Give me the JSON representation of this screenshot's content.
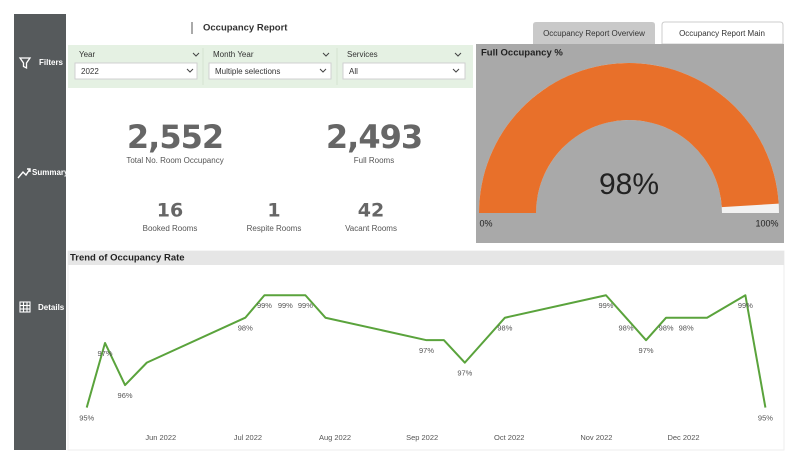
{
  "header": {
    "title": "Occupancy Report",
    "tabs": [
      "Occupancy Report Overview",
      "Occupancy Report Main"
    ]
  },
  "sidebar": [
    "Filters",
    "Summary",
    "Details"
  ],
  "filters": [
    {
      "label": "Year",
      "value": "2022"
    },
    {
      "label": "Month Year",
      "value": "Multiple selections"
    },
    {
      "label": "Services",
      "value": "All"
    }
  ],
  "kpis": [
    {
      "value": "2,552",
      "label": "Total No. Room Occupancy"
    },
    {
      "value": "2,493",
      "label": "Full Rooms"
    },
    {
      "value": "16",
      "label": "Booked Rooms"
    },
    {
      "value": "1",
      "label": "Respite Rooms"
    },
    {
      "value": "42",
      "label": "Vacant Rooms"
    }
  ],
  "chart_data": [
    {
      "type": "gauge",
      "title": "Full Occupancy %",
      "value": 98,
      "value_label": "98%",
      "lim": [
        0,
        100
      ],
      "ticks": [
        {
          "value": 0,
          "label": "0%"
        },
        {
          "value": 100,
          "label": "100%"
        }
      ],
      "color": "#e8702a",
      "track_color": "#f2f2f2"
    },
    {
      "type": "line",
      "title": "Trend of Occupancy Rate",
      "x": [
        5.15,
        5.36,
        5.59,
        5.84,
        6.97,
        7.19,
        7.43,
        7.66,
        7.89,
        9.05,
        9.25,
        9.49,
        9.95,
        11.11,
        11.34,
        11.57,
        11.8,
        12.03,
        12.27,
        12.71,
        12.94
      ],
      "values": [
        95,
        97.3,
        95.8,
        96.6,
        98.2,
        99,
        99,
        99,
        98.2,
        97.4,
        97.4,
        96.6,
        98.2,
        99,
        98.2,
        97.4,
        98.2,
        98.2,
        98.2,
        99,
        95
      ],
      "value_labels": [
        "95%",
        "97%",
        "96%",
        null,
        "98%",
        "99%",
        "99%",
        "99%",
        null,
        "97%",
        null,
        "97%",
        "98%",
        "99%",
        "98%",
        "97%",
        "98%",
        "98%",
        null,
        "99%",
        "95%"
      ],
      "xlim": [
        5.05,
        13.05
      ],
      "xticks": [
        {
          "value": 6,
          "label": "Jun 2022"
        },
        {
          "value": 7,
          "label": "Jul 2022"
        },
        {
          "value": 8,
          "label": "Aug 2022"
        },
        {
          "value": 9,
          "label": "Sep 2022"
        },
        {
          "value": 10,
          "label": "Oct 2022"
        },
        {
          "value": 11,
          "label": "Nov 2022"
        },
        {
          "value": 12,
          "label": "Dec 2022"
        }
      ],
      "ylim": [
        94.2,
        99.9
      ],
      "color": "#5aa33c"
    }
  ]
}
